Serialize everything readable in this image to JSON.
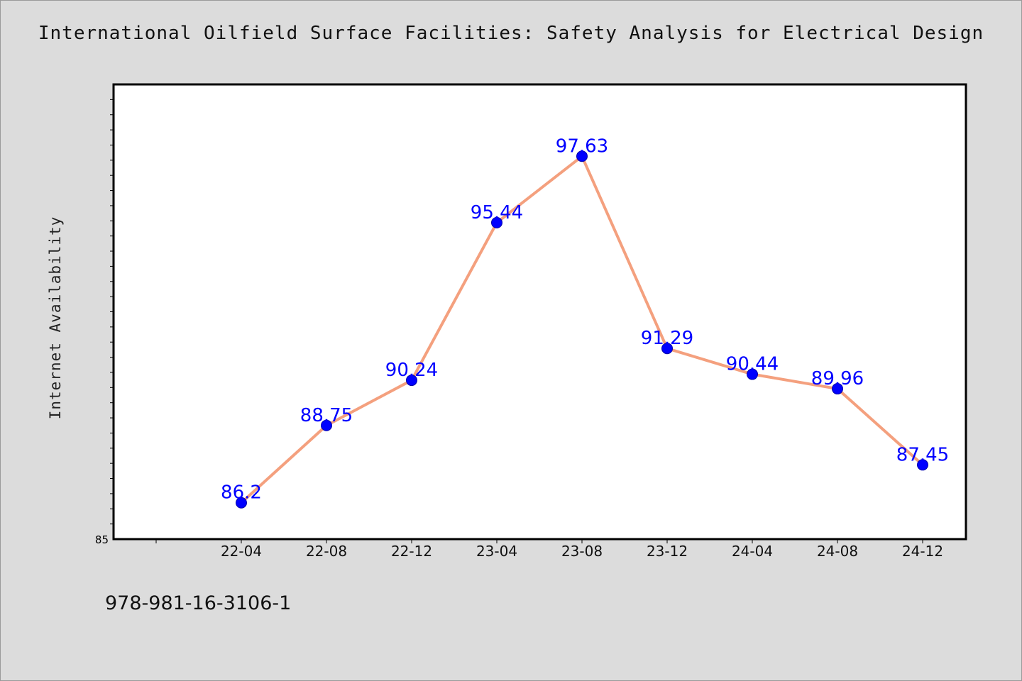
{
  "chart_data": {
    "type": "line",
    "title": "International Oilfield Surface Facilities: Safety Analysis for Electrical Design",
    "xlabel": "",
    "ylabel": "Internet Availability",
    "categories": [
      "22-04",
      "22-08",
      "22-12",
      "23-04",
      "23-08",
      "23-12",
      "24-04",
      "24-08",
      "24-12"
    ],
    "series": [
      {
        "values": [
          86.2,
          88.75,
          90.24,
          95.44,
          97.63,
          91.29,
          90.44,
          89.96,
          87.45
        ],
        "labels": [
          "86.2",
          "88.75",
          "90.24",
          "95.44",
          "97.63",
          "91.29",
          "90.44",
          "89.96",
          "87.45"
        ]
      }
    ],
    "y_tick_labels": [
      "85"
    ],
    "ylim": [
      85,
      100
    ],
    "grid": false,
    "colors": {
      "line": "#f4a07e",
      "marker": "#0000ff",
      "data_label": "#0000ff",
      "plot_background": "#ffffff",
      "figure_background": "#dcdcdc"
    }
  },
  "footer": {
    "isbn": "978-981-16-3106-1"
  }
}
